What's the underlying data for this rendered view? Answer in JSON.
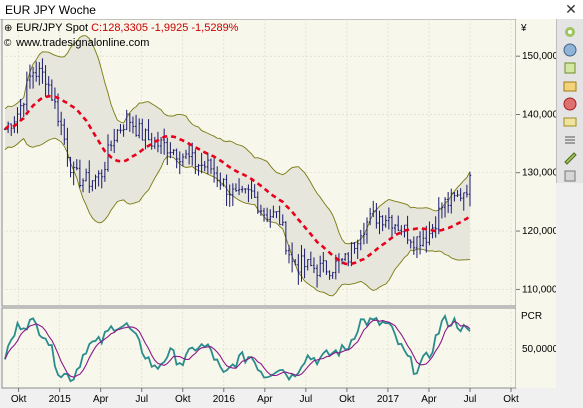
{
  "window": {
    "title": "EUR JPY Woche",
    "close_glyph": "✕"
  },
  "legend": {
    "symbol": "EUR/JPY Spot",
    "quote": "C:128,3305 -1,9925 -1,5289%",
    "website": "www.tradesignalonline.com"
  },
  "price_panel": {
    "currency_label": "¥",
    "y_ticks": [
      "150,0000",
      "140,0000",
      "130,0000",
      "120,0000",
      "110,0000"
    ]
  },
  "pcr_panel": {
    "label": "PCR",
    "y_ticks": [
      "50,0000"
    ]
  },
  "x_axis": {
    "labels": [
      "Okt",
      "2015",
      "Apr",
      "Jul",
      "Okt",
      "2016",
      "Apr",
      "Jul",
      "Okt",
      "2017",
      "Apr",
      "Jul",
      "Okt"
    ]
  },
  "toolbar": {
    "buttons": [
      "pin-icon",
      "grid-icon",
      "cursor-icon",
      "zoom-icon",
      "chart-icon",
      "stop-icon",
      "draw-icon",
      "list-icon",
      "settings-icon"
    ]
  },
  "colors": {
    "price_bars": "#1a1a6e",
    "moving_average": "#e8001c",
    "bollinger_band": "#7a7a10",
    "band_fill": "#e6e6dc",
    "chart_bg": "#f7f7eb",
    "oscillator_fast": "#2a8c8c",
    "oscillator_slow": "#8b1a8b"
  },
  "chart_data": [
    {
      "type": "line",
      "title": "EUR/JPY Spot",
      "x": [
        "2014-09",
        "2014-10",
        "2014-11",
        "2014-12",
        "2015-01",
        "2015-02",
        "2015-03",
        "2015-04",
        "2015-05",
        "2015-06",
        "2015-07",
        "2015-08",
        "2015-09",
        "2015-10",
        "2015-11",
        "2015-12",
        "2016-01",
        "2016-02",
        "2016-03",
        "2016-04",
        "2016-05",
        "2016-06",
        "2016-07",
        "2016-08",
        "2016-09",
        "2016-10",
        "2016-11",
        "2016-12",
        "2017-01",
        "2017-02",
        "2017-03",
        "2017-04",
        "2017-05",
        "2017-06",
        "2017-07"
      ],
      "series": [
        {
          "name": "EUR/JPY Spot",
          "values": [
            137.5,
            140.5,
            147.5,
            146.5,
            139.0,
            129.5,
            128.5,
            129.5,
            136.5,
            139.5,
            136.5,
            135.0,
            134.5,
            133.0,
            131.5,
            131.0,
            128.0,
            125.5,
            126.5,
            123.0,
            122.5,
            114.5,
            114.0,
            113.5,
            114.0,
            115.0,
            120.5,
            122.5,
            122.5,
            120.5,
            118.5,
            119.5,
            124.5,
            125.5,
            128.3
          ]
        }
      ],
      "ylim": [
        108,
        155
      ],
      "ylabel": "¥"
    },
    {
      "type": "line",
      "title": "PCR",
      "x": [
        "2014-09",
        "2014-10",
        "2014-11",
        "2014-12",
        "2015-01",
        "2015-02",
        "2015-03",
        "2015-04",
        "2015-05",
        "2015-06",
        "2015-07",
        "2015-08",
        "2015-09",
        "2015-10",
        "2015-11",
        "2015-12",
        "2016-01",
        "2016-02",
        "2016-03",
        "2016-04",
        "2016-05",
        "2016-06",
        "2016-07",
        "2016-08",
        "2016-09",
        "2016-10",
        "2016-11",
        "2016-12",
        "2017-01",
        "2017-02",
        "2017-03",
        "2017-04",
        "2017-05",
        "2017-06",
        "2017-07"
      ],
      "series": [
        {
          "name": "PCR",
          "values": [
            40,
            85,
            88,
            70,
            15,
            10,
            55,
            60,
            85,
            82,
            50,
            20,
            45,
            30,
            55,
            50,
            10,
            35,
            40,
            12,
            25,
            10,
            40,
            35,
            45,
            50,
            90,
            88,
            85,
            50,
            20,
            40,
            90,
            88,
            70
          ]
        }
      ],
      "ylim": [
        0,
        100
      ]
    }
  ]
}
